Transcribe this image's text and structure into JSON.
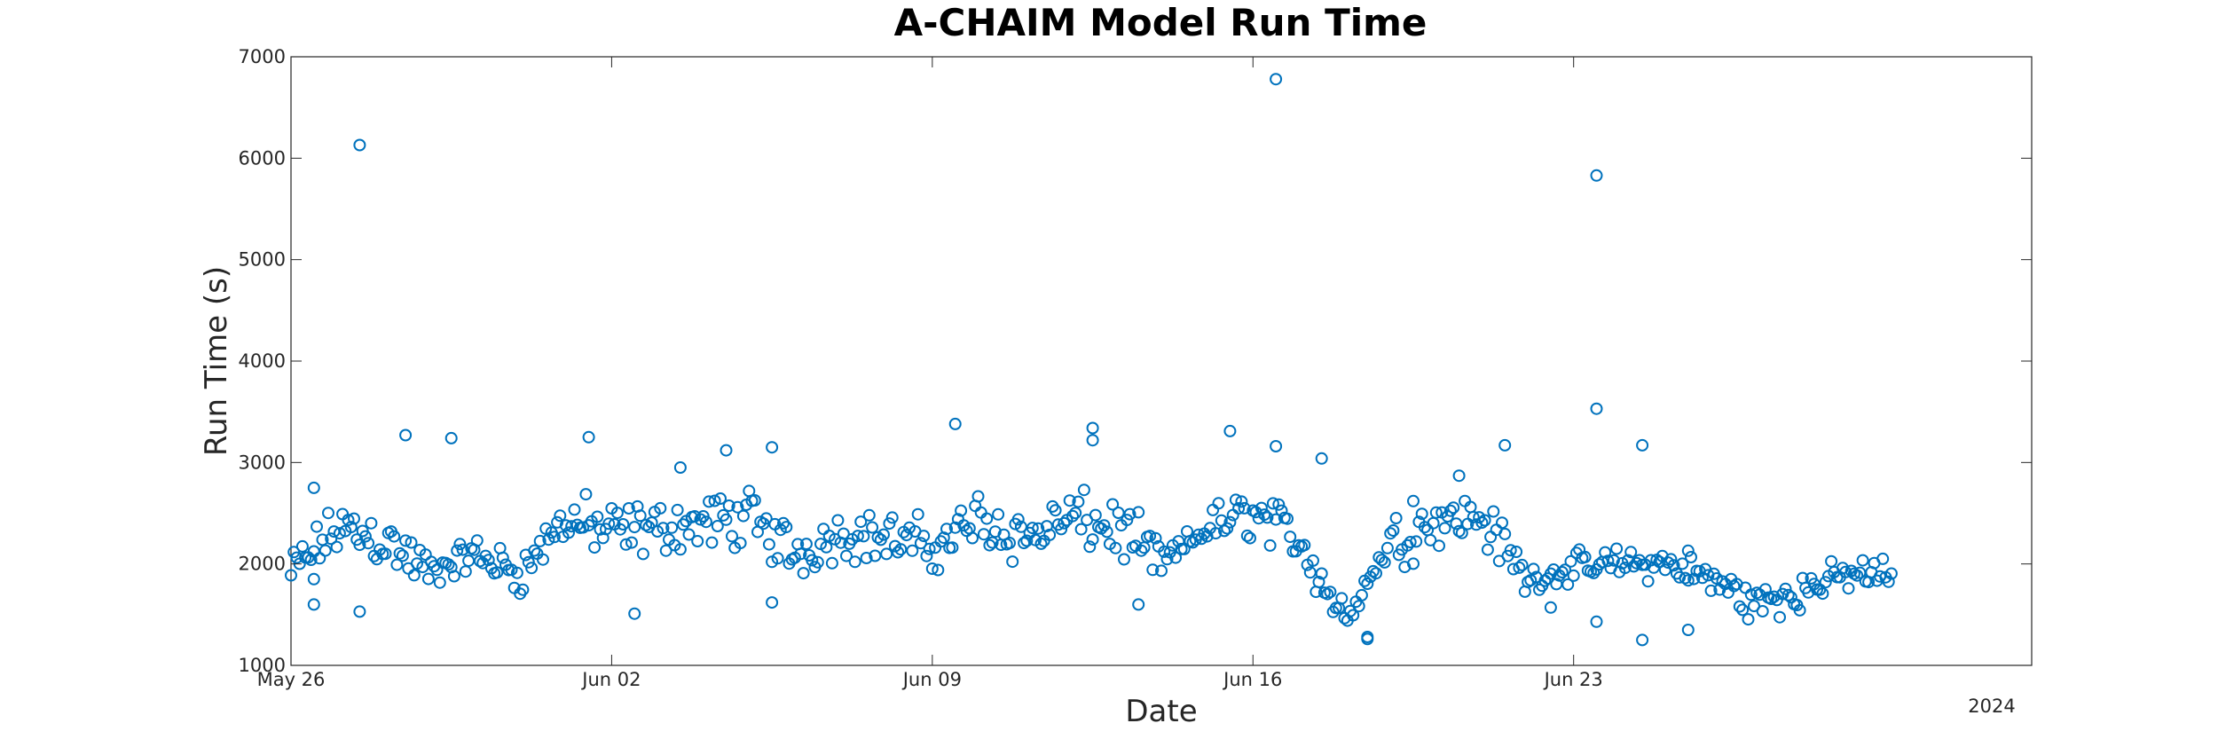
{
  "chart_data": {
    "type": "scatter",
    "title": "A-CHAIM Model Run Time",
    "xlabel": "Date",
    "ylabel": "Run Time (s)",
    "year_label": "2024",
    "x_ticks": [
      "May 26",
      "Jun 02",
      "Jun 09",
      "Jun 16",
      "Jun 23"
    ],
    "x_tick_dates": [
      "2024-05-26",
      "2024-06-02",
      "2024-06-09",
      "2024-06-16",
      "2024-06-23"
    ],
    "xlim": [
      "2024-05-26",
      "2024-07-03"
    ],
    "y_ticks": [
      "1000",
      "2000",
      "3000",
      "4000",
      "5000",
      "6000",
      "7000"
    ],
    "ylim": [
      1000,
      7000
    ],
    "marker": "open-circle",
    "grid": false,
    "colors": {
      "marker": "#0072BD",
      "axis": "#262626"
    },
    "sampling": "approximately every 90 minutes, 2024-05-26 to 2024-06-29",
    "series": [
      {
        "dates": [
          "2024-05-26",
          "2024-05-27",
          "2024-05-28",
          "2024-05-29",
          "2024-05-30",
          "2024-05-31",
          "2024-06-01",
          "2024-06-02",
          "2024-06-03",
          "2024-06-04",
          "2024-06-05",
          "2024-06-06",
          "2024-06-07",
          "2024-06-08",
          "2024-06-09",
          "2024-06-10",
          "2024-06-11",
          "2024-06-12",
          "2024-06-13",
          "2024-06-14",
          "2024-06-15",
          "2024-06-16",
          "2024-06-17",
          "2024-06-18",
          "2024-06-19",
          "2024-06-20",
          "2024-06-21",
          "2024-06-22",
          "2024-06-23",
          "2024-06-24",
          "2024-06-25",
          "2024-06-26",
          "2024-06-27",
          "2024-06-28",
          "2024-06-29"
        ],
        "daily_means": [
          1900,
          2350,
          2250,
          1900,
          2100,
          1900,
          2450,
          2300,
          2350,
          2400,
          2450,
          2100,
          2300,
          2250,
          2150,
          2450,
          2250,
          2450,
          2350,
          2000,
          2350,
          2500,
          2250,
          1450,
          2200,
          2450,
          2450,
          1850,
          1950,
          2000,
          2000,
          1850,
          1600,
          1750,
          1900
        ],
        "spread": [
          300,
          350,
          350,
          200,
          250,
          250,
          350,
          350,
          300,
          350,
          350,
          300,
          300,
          350,
          300,
          350,
          300,
          350,
          350,
          150,
          300,
          300,
          300,
          150,
          350,
          300,
          300,
          150,
          200,
          200,
          200,
          250,
          250,
          200,
          200
        ],
        "outliers": [
          {
            "date": "2024-05-26",
            "y": 2750
          },
          {
            "date": "2024-05-26",
            "y": 1850
          },
          {
            "date": "2024-05-26",
            "y": 1600
          },
          {
            "date": "2024-05-27",
            "y": 1530
          },
          {
            "date": "2024-05-27",
            "y": 6130
          },
          {
            "date": "2024-05-28",
            "y": 3270
          },
          {
            "date": "2024-05-29",
            "y": 3240
          },
          {
            "date": "2024-06-01",
            "y": 3250
          },
          {
            "date": "2024-06-02",
            "y": 1510
          },
          {
            "date": "2024-06-03",
            "y": 2950
          },
          {
            "date": "2024-06-04",
            "y": 3120
          },
          {
            "date": "2024-06-05",
            "y": 3150
          },
          {
            "date": "2024-06-05",
            "y": 1620
          },
          {
            "date": "2024-06-09",
            "y": 3380
          },
          {
            "date": "2024-06-12",
            "y": 3220
          },
          {
            "date": "2024-06-12",
            "y": 3340
          },
          {
            "date": "2024-06-13",
            "y": 1600
          },
          {
            "date": "2024-06-15",
            "y": 3310
          },
          {
            "date": "2024-06-16",
            "y": 6780
          },
          {
            "date": "2024-06-16",
            "y": 3160
          },
          {
            "date": "2024-06-17",
            "y": 3040
          },
          {
            "date": "2024-06-18",
            "y": 1260
          },
          {
            "date": "2024-06-18",
            "y": 1280
          },
          {
            "date": "2024-06-19",
            "y": 2620
          },
          {
            "date": "2024-06-20",
            "y": 2870
          },
          {
            "date": "2024-06-21",
            "y": 3170
          },
          {
            "date": "2024-06-22",
            "y": 1570
          },
          {
            "date": "2024-06-23",
            "y": 5830
          },
          {
            "date": "2024-06-23",
            "y": 3530
          },
          {
            "date": "2024-06-23",
            "y": 1430
          },
          {
            "date": "2024-06-24",
            "y": 3170
          },
          {
            "date": "2024-06-24",
            "y": 1250
          },
          {
            "date": "2024-06-25",
            "y": 1350
          },
          {
            "date": "2024-06-25",
            "y": 2130
          }
        ]
      }
    ]
  }
}
